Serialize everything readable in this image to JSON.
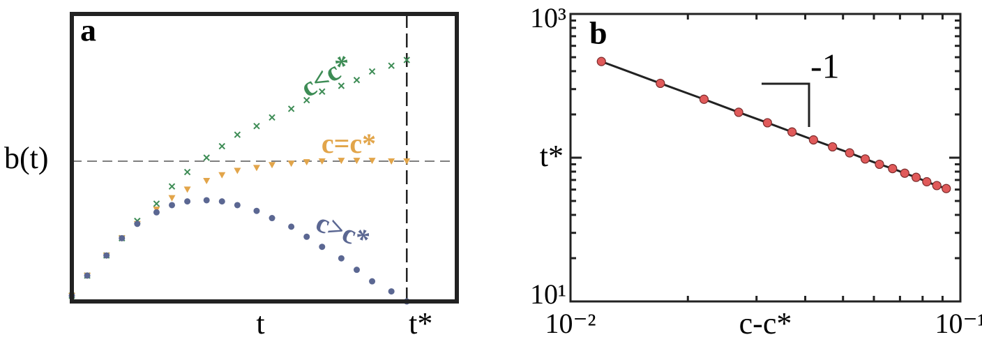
{
  "chart_data": [
    {
      "type": "line",
      "panel": "a",
      "x_label": "t",
      "y_label": "b(t)",
      "xlim": [
        0,
        1
      ],
      "ylim": [
        0,
        1
      ],
      "xticks": [
        {
          "value": 0.87,
          "label": "t*"
        }
      ],
      "x_label_at": 0.49,
      "yticks": [
        0.488
      ],
      "x": [
        0,
        0.04,
        0.09,
        0.13,
        0.17,
        0.22,
        0.26,
        0.3,
        0.35,
        0.39,
        0.43,
        0.48,
        0.52,
        0.57,
        0.61,
        0.65,
        0.7,
        0.74,
        0.78,
        0.83,
        0.87
      ],
      "series": [
        {
          "name": "c<c*",
          "color": "#3d8c55",
          "marker": "cross",
          "values": [
            0.02,
            0.09,
            0.16,
            0.22,
            0.28,
            0.34,
            0.4,
            0.45,
            0.5,
            0.54,
            0.58,
            0.61,
            0.64,
            0.67,
            0.7,
            0.73,
            0.75,
            0.77,
            0.8,
            0.82,
            0.84
          ]
        },
        {
          "name": "c=c*",
          "color": "#e2a54a",
          "marker": "triangle",
          "values": [
            0.02,
            0.09,
            0.16,
            0.22,
            0.27,
            0.32,
            0.36,
            0.39,
            0.42,
            0.44,
            0.455,
            0.465,
            0.475,
            0.48,
            0.485,
            0.488,
            0.49,
            0.49,
            0.49,
            0.488,
            0.488
          ]
        },
        {
          "name": "c>c*",
          "color": "#5b6792",
          "marker": "circle",
          "values": [
            0.02,
            0.09,
            0.16,
            0.22,
            0.27,
            0.31,
            0.335,
            0.348,
            0.352,
            0.348,
            0.335,
            0.315,
            0.29,
            0.26,
            0.225,
            0.19,
            0.15,
            0.11,
            0.07,
            0.035,
            0
          ]
        }
      ]
    },
    {
      "type": "scatter",
      "panel": "b",
      "x_label": "c-c*",
      "y_label": "t*",
      "slope_label": "-1",
      "log_x": true,
      "log_y": true,
      "xlim": [
        0.01,
        0.1
      ],
      "ylim": [
        10,
        1000
      ],
      "xticks": [
        {
          "value": 0.01,
          "label": "10⁻²"
        },
        {
          "value": 0.1,
          "label": "10⁻¹"
        }
      ],
      "yticks": [
        {
          "value": 10,
          "label": "10¹"
        },
        100,
        {
          "value": 1000,
          "label": "10³"
        }
      ],
      "x": [
        0.012,
        0.017,
        0.022,
        0.027,
        0.032,
        0.037,
        0.042,
        0.047,
        0.052,
        0.057,
        0.062,
        0.067,
        0.072,
        0.077,
        0.082,
        0.087,
        0.092
      ],
      "series": [
        {
          "color": "#e05a5a",
          "line_color": "#222222",
          "values": [
            467,
            329,
            255,
            207,
            175,
            151,
            133,
            119,
            108,
            98,
            90,
            84,
            78,
            73,
            68,
            64,
            61
          ]
        }
      ]
    }
  ]
}
